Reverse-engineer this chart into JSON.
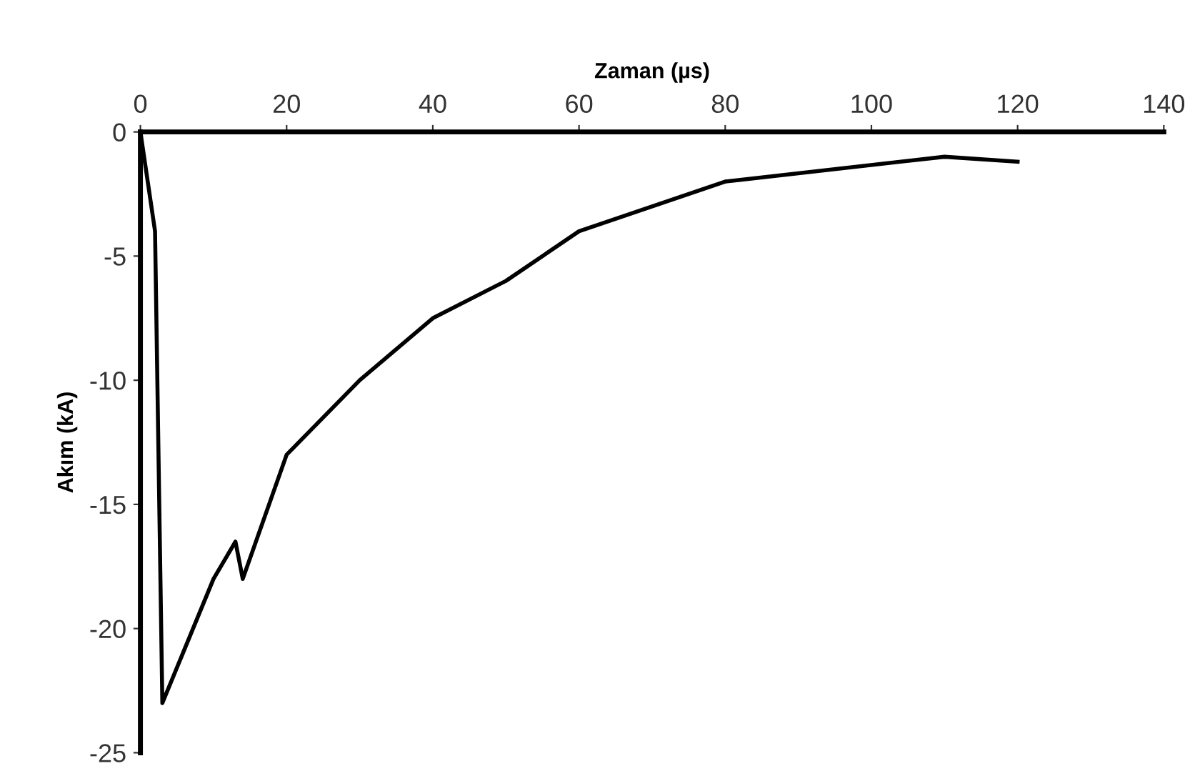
{
  "chart_data": {
    "type": "line",
    "xlabel": "Zaman (µs)",
    "ylabel": "Akım (kA)",
    "x": [
      0,
      2,
      3,
      10,
      13,
      14,
      20,
      30,
      40,
      50,
      60,
      80,
      110,
      120
    ],
    "series": [
      {
        "color": "#000000",
        "values": [
          0,
          -4,
          -23,
          -18,
          -16.5,
          -18,
          -13,
          -10,
          -7.5,
          -6,
          -4,
          -2,
          -1,
          -1.2
        ]
      }
    ],
    "xlim": [
      0,
      140
    ],
    "xticks": [
      0,
      20,
      40,
      60,
      80,
      100,
      120,
      140
    ],
    "ylim": [
      -25,
      0
    ],
    "yticks": [
      -25,
      -20,
      -15,
      -10,
      -5,
      0
    ],
    "grid": false,
    "legend": false,
    "marker": "none",
    "line_style": "solid"
  }
}
